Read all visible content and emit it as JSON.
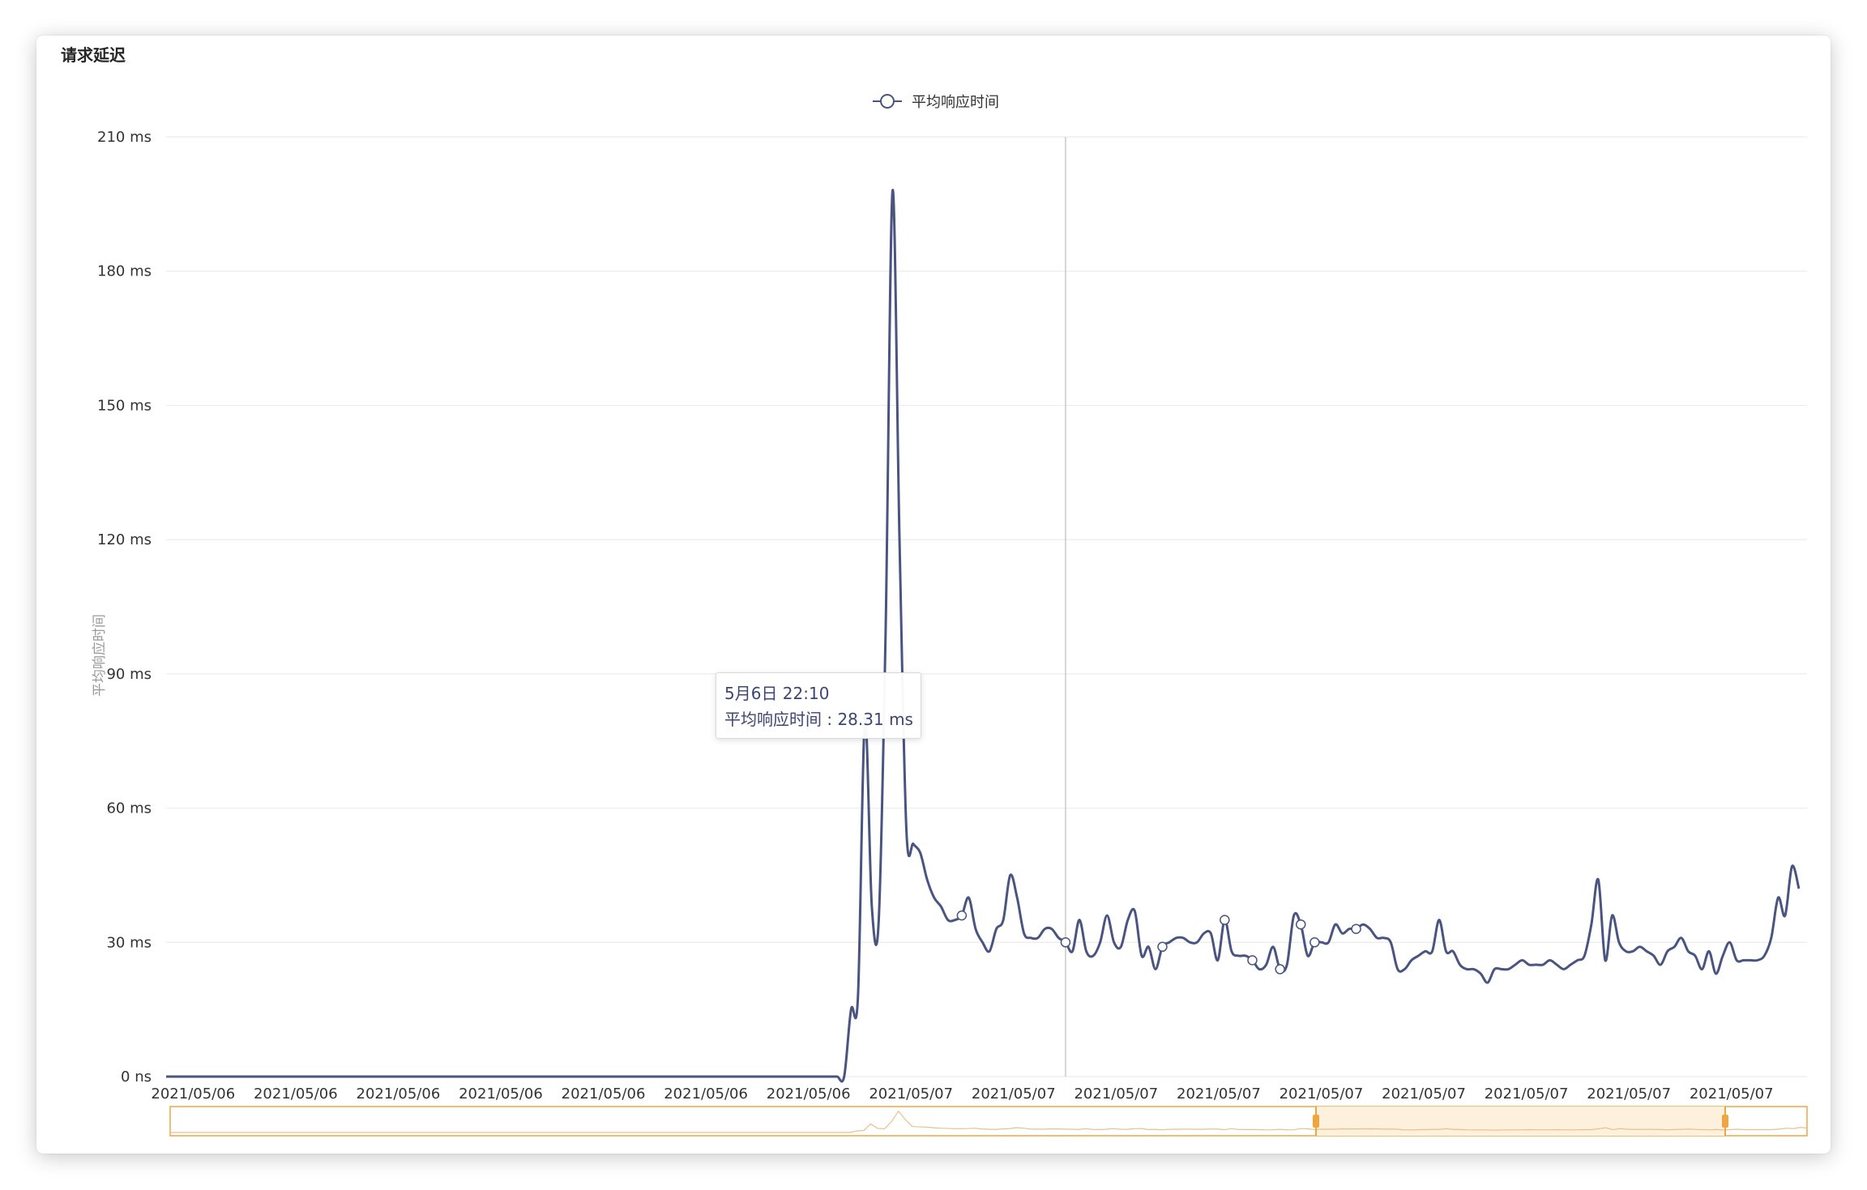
{
  "panel": {
    "title": "请求延迟"
  },
  "tooltip": {
    "time": "5月6日 22:10",
    "series_name": "平均响应时间",
    "value": "28.31 ms"
  },
  "colors": {
    "line": "#4a5480",
    "grid": "#ececec",
    "axis_text": "#333333",
    "slider": "#f0a640",
    "slider_fill": "#fdf0dc"
  },
  "chart_data": {
    "type": "line",
    "legend": "平均响应时间",
    "legend_position": "top-center",
    "ylabel": "平均响应时间",
    "ylim": [
      0,
      210
    ],
    "yticks": [
      0,
      30,
      60,
      90,
      120,
      150,
      180,
      210
    ],
    "ytick_labels": [
      "0 ns",
      "30 ms",
      "60 ms",
      "90 ms",
      "120 ms",
      "150 ms",
      "180 ms",
      "210 ms"
    ],
    "xtick_labels": [
      "2021/05/06",
      "2021/05/06",
      "2021/05/06",
      "2021/05/06",
      "2021/05/06",
      "2021/05/06",
      "2021/05/06",
      "2021/05/07",
      "2021/05/07",
      "2021/05/07",
      "2021/05/07",
      "2021/05/07",
      "2021/05/07",
      "2021/05/07",
      "2021/05/07",
      "2021/05/07"
    ],
    "grid": true,
    "series": [
      {
        "name": "平均响应时间",
        "values": [
          0,
          0,
          0,
          0,
          0,
          0,
          0,
          0,
          0,
          0,
          0,
          0,
          0,
          0,
          0,
          0,
          0,
          0,
          0,
          0,
          0,
          0,
          0,
          0,
          0,
          0,
          0,
          0,
          0,
          0,
          0,
          0,
          0,
          0,
          0,
          0,
          0,
          0,
          0,
          0,
          0,
          0,
          0,
          0,
          0,
          0,
          0,
          0,
          0,
          0,
          0,
          0,
          0,
          0,
          0,
          0,
          0,
          0,
          0,
          0,
          0,
          0,
          0,
          0,
          0,
          0,
          0,
          0,
          0,
          0,
          0,
          0,
          0,
          0,
          0,
          0,
          0,
          0,
          0,
          0,
          0,
          0,
          0,
          0,
          0,
          0,
          0,
          0,
          0,
          0,
          0,
          0,
          0,
          0,
          0,
          0,
          0,
          0,
          0,
          15,
          18,
          80,
          38,
          35,
          100,
          198,
          120,
          55,
          52,
          50,
          44,
          40,
          38,
          35,
          35,
          36,
          40,
          33,
          30,
          28,
          33,
          35,
          45,
          40,
          32,
          31,
          31,
          33,
          33,
          31,
          30,
          28,
          35,
          28,
          27,
          30,
          36,
          30,
          29,
          35,
          37,
          27,
          29,
          24,
          29,
          30,
          31,
          31,
          30,
          30,
          32,
          32,
          26,
          35,
          28,
          27,
          27,
          26,
          24,
          25,
          29,
          24,
          25,
          36,
          34,
          27,
          30,
          30,
          30,
          34,
          32,
          33,
          33,
          34,
          33,
          31,
          31,
          30,
          24,
          24,
          26,
          27,
          28,
          28,
          35,
          28,
          28,
          25,
          24,
          24,
          23,
          21,
          24,
          24,
          24,
          25,
          26,
          25,
          25,
          25,
          26,
          25,
          24,
          25,
          26,
          27,
          34,
          44,
          26,
          36,
          30,
          28,
          28,
          29,
          28,
          27,
          25,
          28,
          29,
          31,
          28,
          27,
          24,
          28,
          23,
          27,
          30,
          26,
          26,
          26,
          26,
          27,
          31,
          40,
          36,
          47,
          42
        ]
      }
    ],
    "highlight_index": 130,
    "slider": {
      "start": 0.7,
      "end": 0.95
    }
  }
}
